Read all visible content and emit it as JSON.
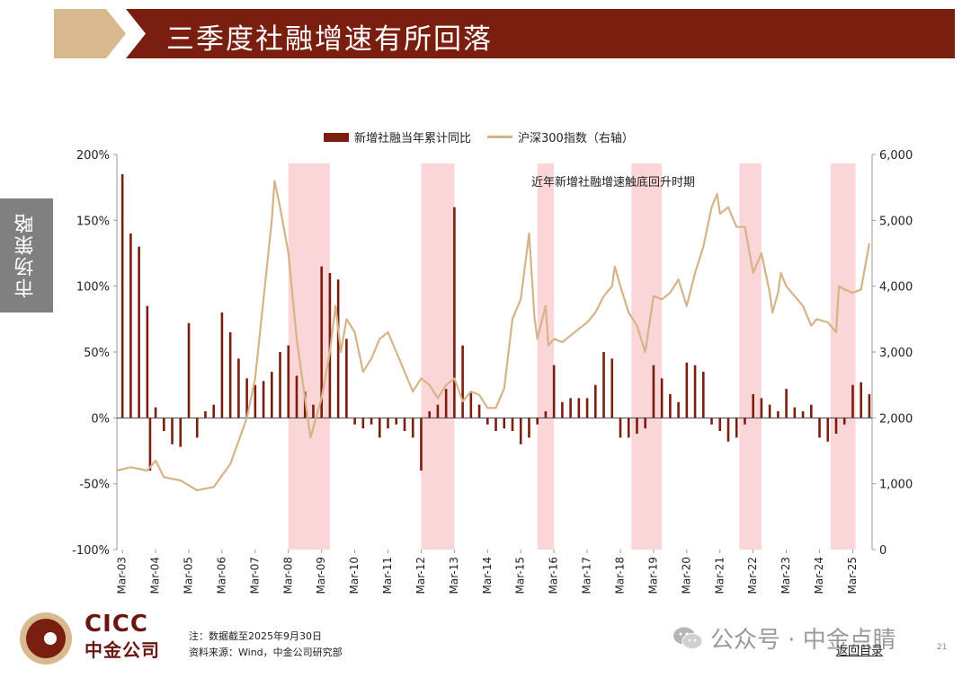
{
  "header": {
    "title": "三季度社融增速有所回落"
  },
  "side_tab": {
    "label": "市场策略"
  },
  "colors": {
    "title_bar": "#7a1e0f",
    "accent": "#d9b98f",
    "bars": "#7a1e0f",
    "line": "#d4b488",
    "shading": "#fbd6d9"
  },
  "chart_data": {
    "type": "bar",
    "annotation": "近年新增社融增速触底回升时期",
    "legend_placement": "top-center",
    "x_tick_labels": [
      "Mar-03",
      "Mar-04",
      "Mar-05",
      "Mar-06",
      "Mar-07",
      "Mar-08",
      "Mar-09",
      "Mar-10",
      "Mar-11",
      "Mar-12",
      "Mar-13",
      "Mar-14",
      "Mar-15",
      "Mar-16",
      "Mar-17",
      "Mar-18",
      "Mar-19",
      "Mar-20",
      "Mar-21",
      "Mar-22",
      "Mar-23",
      "Mar-24",
      "Mar-25"
    ],
    "y_left": {
      "ticks": [
        "-100%",
        "-50%",
        "0%",
        "50%",
        "100%",
        "150%",
        "200%"
      ],
      "range": [
        -100,
        200
      ]
    },
    "y_right": {
      "ticks": [
        "0",
        "1,000",
        "2,000",
        "3,000",
        "4,000",
        "5,000",
        "6,000"
      ],
      "range": [
        0,
        6000
      ]
    },
    "shaded_periods": [
      {
        "start": "2008-03",
        "end": "2009-06"
      },
      {
        "start": "2012-03",
        "end": "2013-03"
      },
      {
        "start": "2015-09",
        "end": "2016-03"
      },
      {
        "start": "2018-07",
        "end": "2019-06"
      },
      {
        "start": "2021-10",
        "end": "2022-06"
      },
      {
        "start": "2024-07",
        "end": "2025-04"
      }
    ],
    "series": [
      {
        "name": "新增社融当年累计同比",
        "type": "bar",
        "axis": "left",
        "points": [
          [
            "2003-03",
            185
          ],
          [
            "2003-06",
            140
          ],
          [
            "2003-09",
            130
          ],
          [
            "2003-12",
            85
          ],
          [
            "2004-01",
            -40
          ],
          [
            "2004-03",
            8
          ],
          [
            "2004-06",
            -10
          ],
          [
            "2004-09",
            -20
          ],
          [
            "2004-12",
            -22
          ],
          [
            "2005-03",
            72
          ],
          [
            "2005-06",
            -15
          ],
          [
            "2005-09",
            5
          ],
          [
            "2005-12",
            10
          ],
          [
            "2006-03",
            80
          ],
          [
            "2006-06",
            65
          ],
          [
            "2006-09",
            45
          ],
          [
            "2006-12",
            30
          ],
          [
            "2007-03",
            25
          ],
          [
            "2007-06",
            28
          ],
          [
            "2007-09",
            35
          ],
          [
            "2007-12",
            50
          ],
          [
            "2008-03",
            55
          ],
          [
            "2008-06",
            32
          ],
          [
            "2008-09",
            20
          ],
          [
            "2008-12",
            10
          ],
          [
            "2009-03",
            115
          ],
          [
            "2009-06",
            110
          ],
          [
            "2009-09",
            105
          ],
          [
            "2009-12",
            60
          ],
          [
            "2010-03",
            -5
          ],
          [
            "2010-06",
            -8
          ],
          [
            "2010-09",
            -5
          ],
          [
            "2010-12",
            -15
          ],
          [
            "2011-03",
            -8
          ],
          [
            "2011-06",
            -5
          ],
          [
            "2011-09",
            -10
          ],
          [
            "2011-12",
            -15
          ],
          [
            "2012-03",
            -40
          ],
          [
            "2012-06",
            5
          ],
          [
            "2012-09",
            10
          ],
          [
            "2012-12",
            22
          ],
          [
            "2013-03",
            160
          ],
          [
            "2013-06",
            55
          ],
          [
            "2013-09",
            20
          ],
          [
            "2013-12",
            10
          ],
          [
            "2014-03",
            -5
          ],
          [
            "2014-06",
            -10
          ],
          [
            "2014-09",
            -8
          ],
          [
            "2014-12",
            -10
          ],
          [
            "2015-03",
            -20
          ],
          [
            "2015-06",
            -15
          ],
          [
            "2015-09",
            -5
          ],
          [
            "2015-12",
            5
          ],
          [
            "2016-03",
            40
          ],
          [
            "2016-06",
            12
          ],
          [
            "2016-09",
            15
          ],
          [
            "2016-12",
            15
          ],
          [
            "2017-03",
            15
          ],
          [
            "2017-06",
            25
          ],
          [
            "2017-09",
            50
          ],
          [
            "2017-12",
            45
          ],
          [
            "2018-03",
            -15
          ],
          [
            "2018-06",
            -15
          ],
          [
            "2018-09",
            -12
          ],
          [
            "2018-12",
            -8
          ],
          [
            "2019-03",
            40
          ],
          [
            "2019-06",
            30
          ],
          [
            "2019-09",
            18
          ],
          [
            "2019-12",
            12
          ],
          [
            "2020-03",
            42
          ],
          [
            "2020-06",
            40
          ],
          [
            "2020-09",
            35
          ],
          [
            "2020-12",
            -5
          ],
          [
            "2021-03",
            -10
          ],
          [
            "2021-06",
            -18
          ],
          [
            "2021-09",
            -15
          ],
          [
            "2021-12",
            -5
          ],
          [
            "2022-03",
            18
          ],
          [
            "2022-06",
            15
          ],
          [
            "2022-09",
            10
          ],
          [
            "2022-12",
            5
          ],
          [
            "2023-03",
            22
          ],
          [
            "2023-06",
            8
          ],
          [
            "2023-09",
            5
          ],
          [
            "2023-12",
            10
          ],
          [
            "2024-03",
            -15
          ],
          [
            "2024-06",
            -18
          ],
          [
            "2024-09",
            -12
          ],
          [
            "2024-12",
            -5
          ],
          [
            "2025-03",
            25
          ],
          [
            "2025-06",
            27
          ],
          [
            "2025-09",
            18
          ]
        ]
      },
      {
        "name": "沪深300指数（右轴）",
        "type": "line",
        "axis": "right",
        "points": [
          [
            "2003-01",
            1200
          ],
          [
            "2003-06",
            1250
          ],
          [
            "2003-12",
            1200
          ],
          [
            "2004-03",
            1350
          ],
          [
            "2004-06",
            1100
          ],
          [
            "2004-12",
            1050
          ],
          [
            "2005-06",
            900
          ],
          [
            "2005-12",
            950
          ],
          [
            "2006-06",
            1300
          ],
          [
            "2006-12",
            2000
          ],
          [
            "2007-03",
            2600
          ],
          [
            "2007-06",
            3800
          ],
          [
            "2007-09",
            5000
          ],
          [
            "2007-10",
            5600
          ],
          [
            "2007-12",
            5200
          ],
          [
            "2008-03",
            4500
          ],
          [
            "2008-06",
            3200
          ],
          [
            "2008-09",
            2300
          ],
          [
            "2008-11",
            1700
          ],
          [
            "2008-12",
            1850
          ],
          [
            "2009-03",
            2300
          ],
          [
            "2009-06",
            3000
          ],
          [
            "2009-08",
            3700
          ],
          [
            "2009-10",
            3000
          ],
          [
            "2009-12",
            3500
          ],
          [
            "2010-03",
            3300
          ],
          [
            "2010-06",
            2700
          ],
          [
            "2010-09",
            2900
          ],
          [
            "2010-12",
            3200
          ],
          [
            "2011-03",
            3300
          ],
          [
            "2011-06",
            3000
          ],
          [
            "2011-09",
            2700
          ],
          [
            "2011-12",
            2400
          ],
          [
            "2012-03",
            2600
          ],
          [
            "2012-06",
            2500
          ],
          [
            "2012-09",
            2300
          ],
          [
            "2012-12",
            2500
          ],
          [
            "2013-03",
            2600
          ],
          [
            "2013-06",
            2250
          ],
          [
            "2013-09",
            2400
          ],
          [
            "2013-12",
            2350
          ],
          [
            "2014-03",
            2150
          ],
          [
            "2014-06",
            2150
          ],
          [
            "2014-09",
            2450
          ],
          [
            "2014-12",
            3500
          ],
          [
            "2015-03",
            3800
          ],
          [
            "2015-06",
            4800
          ],
          [
            "2015-08",
            3500
          ],
          [
            "2015-09",
            3200
          ],
          [
            "2015-12",
            3700
          ],
          [
            "2016-01",
            3100
          ],
          [
            "2016-03",
            3200
          ],
          [
            "2016-06",
            3150
          ],
          [
            "2016-09",
            3250
          ],
          [
            "2016-12",
            3350
          ],
          [
            "2017-03",
            3450
          ],
          [
            "2017-06",
            3600
          ],
          [
            "2017-09",
            3850
          ],
          [
            "2017-12",
            4000
          ],
          [
            "2018-01",
            4300
          ],
          [
            "2018-03",
            4000
          ],
          [
            "2018-06",
            3600
          ],
          [
            "2018-09",
            3400
          ],
          [
            "2018-12",
            3000
          ],
          [
            "2019-03",
            3850
          ],
          [
            "2019-06",
            3800
          ],
          [
            "2019-09",
            3900
          ],
          [
            "2019-12",
            4100
          ],
          [
            "2020-03",
            3700
          ],
          [
            "2020-06",
            4200
          ],
          [
            "2020-09",
            4600
          ],
          [
            "2020-12",
            5200
          ],
          [
            "2021-02",
            5400
          ],
          [
            "2021-03",
            5100
          ],
          [
            "2021-06",
            5200
          ],
          [
            "2021-09",
            4900
          ],
          [
            "2021-12",
            4900
          ],
          [
            "2022-03",
            4200
          ],
          [
            "2022-06",
            4500
          ],
          [
            "2022-09",
            3900
          ],
          [
            "2022-10",
            3600
          ],
          [
            "2022-12",
            3900
          ],
          [
            "2023-01",
            4200
          ],
          [
            "2023-03",
            4000
          ],
          [
            "2023-06",
            3850
          ],
          [
            "2023-09",
            3700
          ],
          [
            "2023-12",
            3400
          ],
          [
            "2024-02",
            3500
          ],
          [
            "2024-06",
            3450
          ],
          [
            "2024-09",
            3300
          ],
          [
            "2024-10",
            4000
          ],
          [
            "2024-12",
            3950
          ],
          [
            "2025-03",
            3900
          ],
          [
            "2025-06",
            3950
          ],
          [
            "2025-09",
            4650
          ]
        ]
      }
    ]
  },
  "logo": {
    "en": "CICC",
    "cn": "中金公司"
  },
  "notes": {
    "line1": "注：数据截至2025年9月30日",
    "line2": "资料来源：Wind，中金公司研究部"
  },
  "watermark": "公众号 · 中金点睛",
  "back_link": "返回目录",
  "page_number": "21"
}
